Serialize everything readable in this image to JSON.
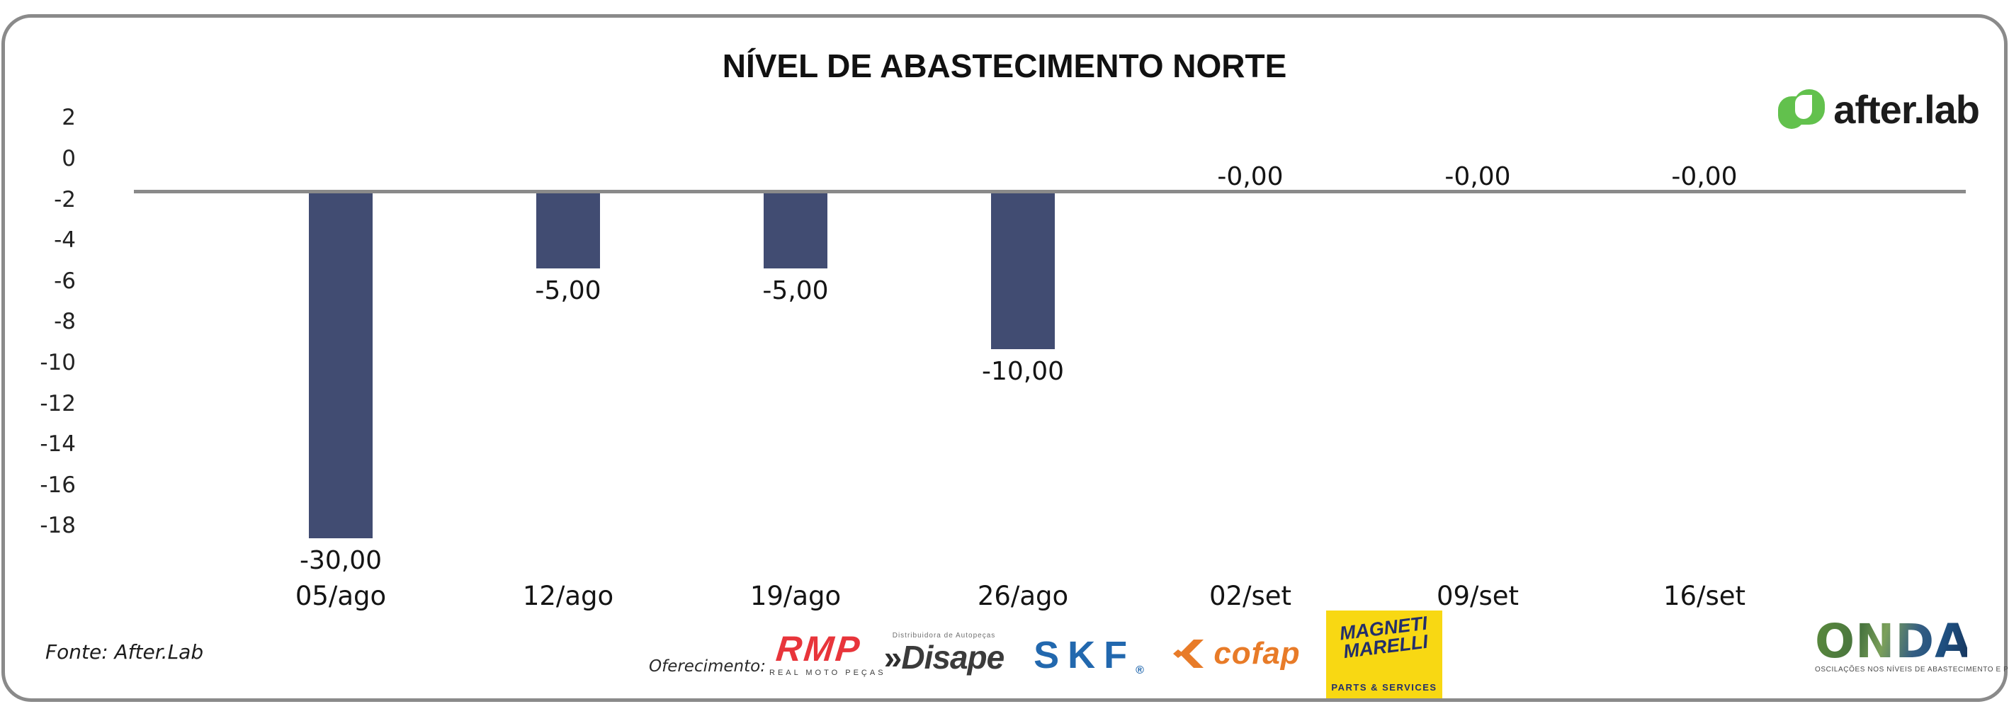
{
  "chart_data": {
    "type": "bar",
    "title": "NÍVEL DE ABASTECIMENTO NORTE",
    "categories": [
      "05/ago",
      "12/ago",
      "19/ago",
      "26/ago",
      "02/set",
      "09/set",
      "16/set"
    ],
    "values": [
      -30,
      -5,
      -5,
      -10,
      0,
      0,
      0
    ],
    "value_labels": [
      "-30,00",
      "-5,00",
      "-5,00",
      "-10,00",
      "-0,00",
      "-0,00",
      "-0,00"
    ],
    "y_ticks": [
      2,
      0,
      -2,
      -4,
      -6,
      -8,
      -10,
      -12,
      -14,
      -16,
      -18
    ],
    "ylim": [
      -18,
      2
    ],
    "xlabel": "",
    "ylabel": "",
    "grid": "off",
    "legend": "none",
    "bar_color": "#414c72",
    "baseline_color": "#8a8a8a"
  },
  "header": {
    "brand": "after.lab"
  },
  "footer": {
    "source": "Fonte: After.Lab",
    "sponsors_label": "Oferecimento:",
    "sponsors": [
      {
        "name": "RMP",
        "subtitle": "REAL MOTO PEÇAS",
        "color": "#e8353b"
      },
      {
        "name": "Disape",
        "subtitle": "Distribuidora de Autopeças",
        "chevrons": "»",
        "color": "#3b3b3b"
      },
      {
        "name": "SKF",
        "registered": "®",
        "color": "#2268ae"
      },
      {
        "name": "cofap",
        "color": "#e87b28"
      },
      {
        "name": "MAGNETI MARELLI",
        "line1": "MAGNETI",
        "line2": "MARELLI",
        "subtitle": "PARTS & SERVICES",
        "bg": "#f8d813",
        "color": "#232f6b"
      }
    ],
    "onda": {
      "name": "ONDA",
      "tagline": "OSCILAÇÕES NOS NÍVEIS DE ABASTECIMENTO E PREÇOS"
    }
  },
  "colors": {
    "bar": "#414c72",
    "baseline": "#8a8a8a",
    "afterlab_green": "#62c14d",
    "card_border": "#8a8a8a"
  }
}
